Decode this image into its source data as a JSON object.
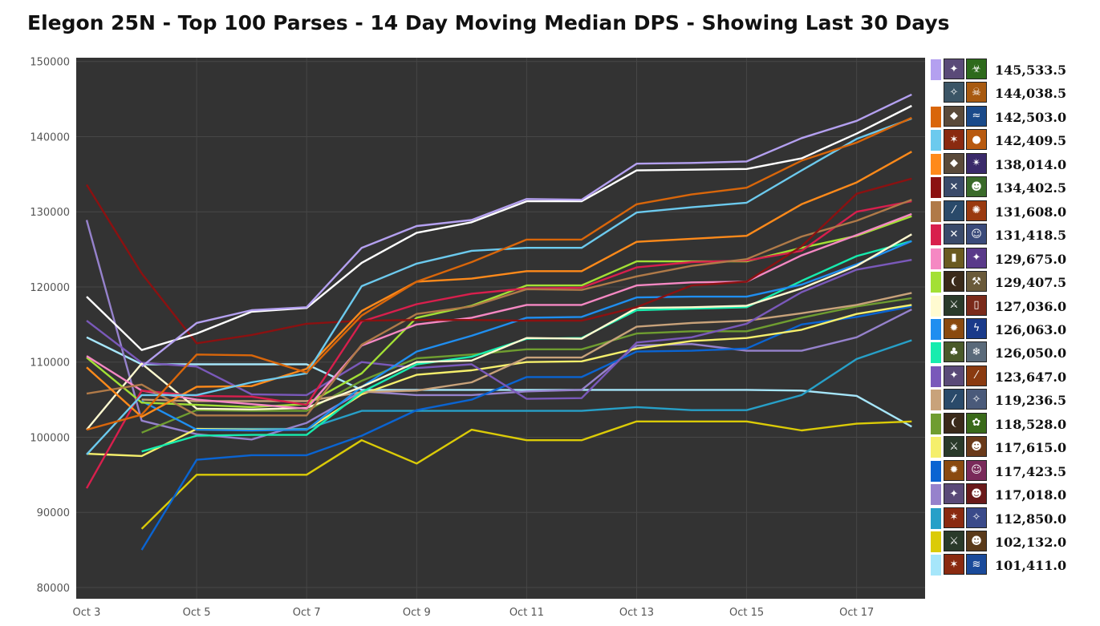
{
  "title": "Elegon 25N - Top 100 Parses - 14 Day Moving Median DPS - Showing Last 30 Days",
  "chart_data": {
    "type": "line",
    "title": "Elegon 25N - Top 100 Parses - 14 Day Moving Median DPS - Showing Last 30 Days",
    "xlabel": "",
    "ylabel": "",
    "x": [
      "Oct 3",
      "Oct 4",
      "Oct 5",
      "Oct 6",
      "Oct 7",
      "Oct 8",
      "Oct 9",
      "Oct 10",
      "Oct 11",
      "Oct 12",
      "Oct 13",
      "Oct 14",
      "Oct 15",
      "Oct 16",
      "Oct 17",
      "Oct 18"
    ],
    "x_tick_labels": [
      "Oct 3",
      "Oct 5",
      "Oct 7",
      "Oct 9",
      "Oct 11",
      "Oct 13",
      "Oct 15",
      "Oct 17"
    ],
    "y_tick_labels": [
      "150000",
      "140000",
      "130000",
      "120000",
      "110000",
      "100000",
      "90000",
      "80000"
    ],
    "ylim": [
      78500,
      150500
    ],
    "grid": true,
    "background": "#333333",
    "legend_placement": "right",
    "series": [
      {
        "color": "#b4a0f0",
        "label": "145,533.5",
        "values": [
          null,
          109400,
          115200,
          116900,
          117300,
          125200,
          128100,
          128900,
          131700,
          131600,
          136400,
          136500,
          136700,
          139800,
          142100,
          145600
        ]
      },
      {
        "color": "#ffffff",
        "label": "144,038.5",
        "values": [
          118700,
          111600,
          113800,
          116700,
          117200,
          123200,
          127200,
          128600,
          131400,
          131400,
          135500,
          135600,
          135700,
          137100,
          140400,
          144100
        ]
      },
      {
        "color": "#d9660a",
        "label": "142,503.0",
        "values": [
          101000,
          103000,
          111000,
          110900,
          108600,
          116200,
          120700,
          123300,
          126300,
          126300,
          131000,
          132300,
          133200,
          136800,
          139200,
          142500
        ]
      },
      {
        "color": "#6ccaee",
        "label": "142,409.5",
        "values": [
          97700,
          105600,
          105600,
          107300,
          108500,
          120100,
          123100,
          124800,
          125200,
          125200,
          129900,
          130600,
          131200,
          135500,
          139700,
          142400
        ]
      },
      {
        "color": "#ff8a1a",
        "label": "138,014.0",
        "values": [
          109300,
          102700,
          106700,
          106800,
          109100,
          116800,
          120700,
          121100,
          122100,
          122100,
          126000,
          126400,
          126800,
          131000,
          133900,
          138000
        ]
      },
      {
        "color": "#8b1111",
        "label": "134,402.5",
        "values": [
          133600,
          121800,
          112500,
          113600,
          115100,
          115500,
          115600,
          115600,
          115500,
          115500,
          117300,
          120200,
          120700,
          125400,
          132400,
          134400
        ]
      },
      {
        "color": "#b07a48",
        "label": "131,608.0",
        "values": [
          105800,
          107000,
          102900,
          102900,
          102900,
          112300,
          116400,
          117400,
          119700,
          119600,
          121400,
          122800,
          123700,
          126700,
          128800,
          131600
        ]
      },
      {
        "color": "#d81f4d",
        "label": "131,418.5",
        "values": [
          93200,
          106200,
          105500,
          105400,
          104300,
          115400,
          117700,
          119100,
          119800,
          119900,
          122600,
          123300,
          123500,
          124800,
          130000,
          131400
        ]
      },
      {
        "color": "#f588c3",
        "label": "129,675.0",
        "values": [
          110800,
          106200,
          105000,
          104400,
          103800,
          112200,
          115000,
          115900,
          117600,
          117600,
          120200,
          120600,
          120700,
          124200,
          126900,
          129700
        ]
      },
      {
        "color": "#a3e035",
        "label": "129,407.5",
        "values": [
          110600,
          104600,
          104300,
          104000,
          104400,
          108500,
          115900,
          117500,
          120200,
          120200,
          123400,
          123400,
          123400,
          125200,
          126800,
          129400
        ]
      },
      {
        "color": "#fffad0",
        "label": "127,036.0",
        "values": [
          101000,
          109800,
          103800,
          103700,
          103900,
          106700,
          110000,
          110200,
          113200,
          113100,
          117200,
          117300,
          117500,
          119800,
          122800,
          127000
        ]
      },
      {
        "color": "#1f8ef0",
        "label": "126,063.0",
        "values": [
          null,
          104800,
          101000,
          100900,
          101000,
          106700,
          111400,
          113500,
          115900,
          116000,
          118600,
          118700,
          118700,
          120300,
          123000,
          126100
        ]
      },
      {
        "color": "#17ecae",
        "label": "126,050.0",
        "values": [
          null,
          98100,
          100200,
          100300,
          100300,
          106000,
          109700,
          110700,
          113100,
          113200,
          116900,
          117100,
          117300,
          120800,
          124100,
          126100
        ]
      },
      {
        "color": "#7a59ba",
        "label": "123,647.0",
        "values": [
          115500,
          109900,
          109400,
          105700,
          105600,
          110000,
          109200,
          109700,
          105100,
          105200,
          112600,
          113300,
          115100,
          119300,
          122300,
          123600
        ]
      },
      {
        "color": "#c8a27a",
        "label": "119,236.5",
        "values": [
          null,
          105000,
          104800,
          104800,
          104800,
          106000,
          106200,
          107300,
          110600,
          110600,
          114700,
          115200,
          115500,
          116500,
          117600,
          119200
        ]
      },
      {
        "color": "#6f9d30",
        "label": "118,528.0",
        "values": [
          null,
          100600,
          103600,
          103500,
          103500,
          107500,
          110500,
          111000,
          111700,
          111700,
          113800,
          114100,
          114100,
          115900,
          117400,
          118500
        ]
      },
      {
        "color": "#f5ef6c",
        "label": "117,615.0",
        "values": [
          97800,
          97500,
          101100,
          101000,
          101000,
          105700,
          108300,
          108900,
          110000,
          110100,
          111800,
          112800,
          113200,
          114300,
          116400,
          117600
        ]
      },
      {
        "color": "#0a64d2",
        "label": "117,423.5",
        "values": [
          null,
          85000,
          97000,
          97600,
          97600,
          100200,
          103600,
          105000,
          108000,
          108000,
          111400,
          111500,
          111800,
          115000,
          116000,
          117400
        ]
      },
      {
        "color": "#9682cc",
        "label": "117,018.0",
        "values": [
          128900,
          102200,
          100400,
          99700,
          101900,
          106100,
          105600,
          105600,
          106100,
          106300,
          112200,
          112400,
          111500,
          111500,
          113300,
          117000
        ]
      },
      {
        "color": "#27a0c8",
        "label": "112,850.0",
        "values": [
          null,
          null,
          101100,
          101100,
          101100,
          103500,
          103500,
          103500,
          103500,
          103500,
          104000,
          103600,
          103600,
          105600,
          110400,
          112900
        ]
      },
      {
        "color": "#dbcb07",
        "label": "102,132.0",
        "values": [
          null,
          87800,
          95000,
          95000,
          95000,
          99600,
          96500,
          101000,
          99600,
          99600,
          102100,
          102100,
          102100,
          100900,
          101800,
          102100
        ]
      },
      {
        "color": "#a6e6fa",
        "label": "101,411.0",
        "values": [
          113300,
          109700,
          109700,
          109700,
          109700,
          106300,
          106300,
          106300,
          106300,
          106300,
          106300,
          106300,
          106300,
          106200,
          105500,
          101400
        ]
      }
    ]
  },
  "legend": [
    {
      "color": "#b4a0f0",
      "value": "145,533.5",
      "icon_a": {
        "name": "class-spell-icon",
        "bg": "#5a4a78",
        "glyph": "✦"
      },
      "icon_b": {
        "name": "class-spell-icon",
        "bg": "#2e6a1c",
        "glyph": "☣"
      }
    },
    {
      "color": "#ffffff",
      "value": "144,038.5",
      "icon_a": {
        "name": "class-spell-icon",
        "bg": "#3b5566",
        "glyph": "✧"
      },
      "icon_b": {
        "name": "class-spell-icon",
        "bg": "#a85a10",
        "glyph": "☠"
      }
    },
    {
      "color": "#d9660a",
      "value": "142,503.0",
      "icon_a": {
        "name": "class-spell-icon",
        "bg": "#5a4a3a",
        "glyph": "◆"
      },
      "icon_b": {
        "name": "class-spell-icon",
        "bg": "#1a4a8a",
        "glyph": "≈"
      }
    },
    {
      "color": "#6ccaee",
      "value": "142,409.5",
      "icon_a": {
        "name": "class-spell-icon",
        "bg": "#8a2a10",
        "glyph": "✶"
      },
      "icon_b": {
        "name": "class-spell-icon",
        "bg": "#b85a10",
        "glyph": "●"
      }
    },
    {
      "color": "#ff8a1a",
      "value": "138,014.0",
      "icon_a": {
        "name": "class-spell-icon",
        "bg": "#5a4a3a",
        "glyph": "◆"
      },
      "icon_b": {
        "name": "class-spell-icon",
        "bg": "#3a2a6a",
        "glyph": "✴"
      }
    },
    {
      "color": "#8b1111",
      "value": "134,402.5",
      "icon_a": {
        "name": "class-spell-icon",
        "bg": "#3a4a6a",
        "glyph": "✕"
      },
      "icon_b": {
        "name": "class-spell-icon",
        "bg": "#3a6a2a",
        "glyph": "☻"
      }
    },
    {
      "color": "#b07a48",
      "value": "131,608.0",
      "icon_a": {
        "name": "class-spell-icon",
        "bg": "#2a4a6a",
        "glyph": "⁄"
      },
      "icon_b": {
        "name": "class-spell-icon",
        "bg": "#9a3a10",
        "glyph": "✺"
      }
    },
    {
      "color": "#d81f4d",
      "value": "131,418.5",
      "icon_a": {
        "name": "class-spell-icon",
        "bg": "#3a4a6a",
        "glyph": "✕"
      },
      "icon_b": {
        "name": "class-spell-icon",
        "bg": "#3a4a7a",
        "glyph": "☺"
      }
    },
    {
      "color": "#f588c3",
      "value": "129,675.0",
      "icon_a": {
        "name": "class-spell-icon",
        "bg": "#6a5a20",
        "glyph": "▮"
      },
      "icon_b": {
        "name": "class-spell-icon",
        "bg": "#5a3a8a",
        "glyph": "✦"
      }
    },
    {
      "color": "#a3e035",
      "value": "129,407.5",
      "icon_a": {
        "name": "class-spell-icon",
        "bg": "#3a2a1a",
        "glyph": "❨"
      },
      "icon_b": {
        "name": "class-spell-icon",
        "bg": "#6a5a3a",
        "glyph": "⚒"
      }
    },
    {
      "color": "#fffad0",
      "value": "127,036.0",
      "icon_a": {
        "name": "class-spell-icon",
        "bg": "#2a3a2a",
        "glyph": "⚔"
      },
      "icon_b": {
        "name": "class-spell-icon",
        "bg": "#7a2a1a",
        "glyph": "▯"
      }
    },
    {
      "color": "#1f8ef0",
      "value": "126,063.0",
      "icon_a": {
        "name": "class-spell-icon",
        "bg": "#8a4a10",
        "glyph": "✹"
      },
      "icon_b": {
        "name": "class-spell-icon",
        "bg": "#1a3a8a",
        "glyph": "ϟ"
      }
    },
    {
      "color": "#17ecae",
      "value": "126,050.0",
      "icon_a": {
        "name": "class-spell-icon",
        "bg": "#4a5a2a",
        "glyph": "♣"
      },
      "icon_b": {
        "name": "class-spell-icon",
        "bg": "#5a6a7a",
        "glyph": "❄"
      }
    },
    {
      "color": "#7a59ba",
      "value": "123,647.0",
      "icon_a": {
        "name": "class-spell-icon",
        "bg": "#5a4a78",
        "glyph": "✦"
      },
      "icon_b": {
        "name": "class-spell-icon",
        "bg": "#8a3a10",
        "glyph": "⁄"
      }
    },
    {
      "color": "#c8a27a",
      "value": "119,236.5",
      "icon_a": {
        "name": "class-spell-icon",
        "bg": "#2a4a6a",
        "glyph": "⁄"
      },
      "icon_b": {
        "name": "class-spell-icon",
        "bg": "#4a5a7a",
        "glyph": "✧"
      }
    },
    {
      "color": "#6f9d30",
      "value": "118,528.0",
      "icon_a": {
        "name": "class-spell-icon",
        "bg": "#3a2a1a",
        "glyph": "❨"
      },
      "icon_b": {
        "name": "class-spell-icon",
        "bg": "#3a6a1a",
        "glyph": "✿"
      }
    },
    {
      "color": "#f5ef6c",
      "value": "117,615.0",
      "icon_a": {
        "name": "class-spell-icon",
        "bg": "#2a3a2a",
        "glyph": "⚔"
      },
      "icon_b": {
        "name": "class-spell-icon",
        "bg": "#6a3a1a",
        "glyph": "☻"
      }
    },
    {
      "color": "#0a64d2",
      "value": "117,423.5",
      "icon_a": {
        "name": "class-spell-icon",
        "bg": "#8a4a10",
        "glyph": "✹"
      },
      "icon_b": {
        "name": "class-spell-icon",
        "bg": "#7a2a5a",
        "glyph": "☺"
      }
    },
    {
      "color": "#9682cc",
      "value": "117,018.0",
      "icon_a": {
        "name": "class-spell-icon",
        "bg": "#5a4a78",
        "glyph": "✦"
      },
      "icon_b": {
        "name": "class-spell-icon",
        "bg": "#6a1a1a",
        "glyph": "☻"
      }
    },
    {
      "color": "#27a0c8",
      "value": "112,850.0",
      "icon_a": {
        "name": "class-spell-icon",
        "bg": "#8a2a10",
        "glyph": "✶"
      },
      "icon_b": {
        "name": "class-spell-icon",
        "bg": "#3a4a8a",
        "glyph": "✧"
      }
    },
    {
      "color": "#dbcb07",
      "value": "102,132.0",
      "icon_a": {
        "name": "class-spell-icon",
        "bg": "#2a3a2a",
        "glyph": "⚔"
      },
      "icon_b": {
        "name": "class-spell-icon",
        "bg": "#5a3a1a",
        "glyph": "☻"
      }
    },
    {
      "color": "#a6e6fa",
      "value": "101,411.0",
      "icon_a": {
        "name": "class-spell-icon",
        "bg": "#8a2a10",
        "glyph": "✶"
      },
      "icon_b": {
        "name": "class-spell-icon",
        "bg": "#1a4a9a",
        "glyph": "≋"
      }
    }
  ]
}
